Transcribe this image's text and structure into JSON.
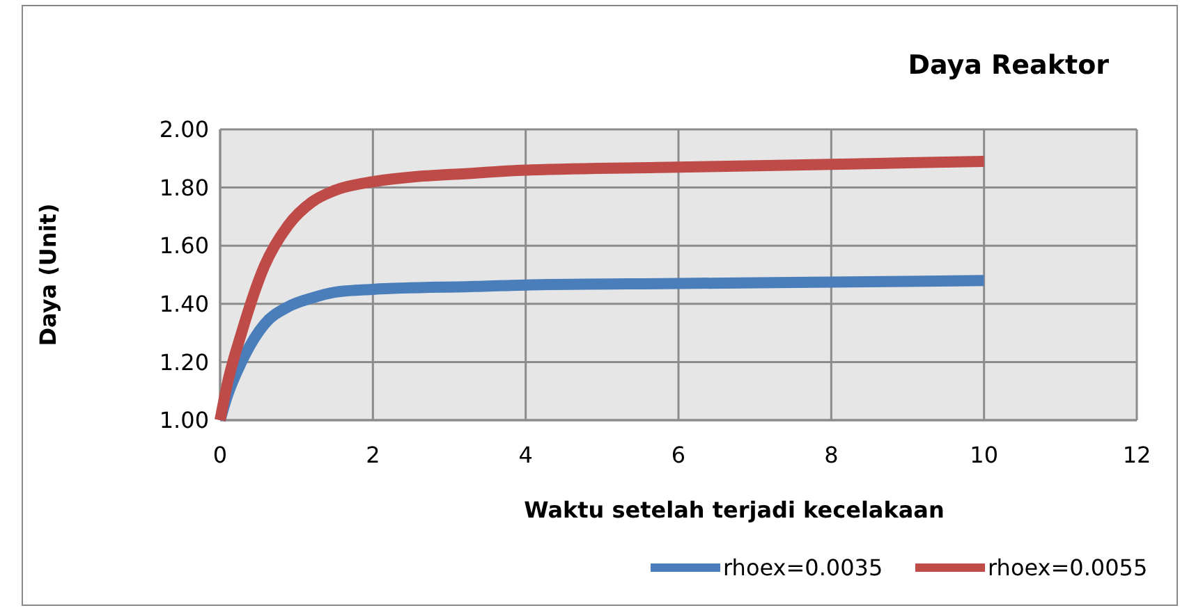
{
  "chart_data": {
    "type": "line",
    "title": "Daya Reaktor",
    "xlabel": "Waktu setelah terjadi kecelakaan",
    "ylabel": "Daya (Unit)",
    "xlim": [
      0,
      12
    ],
    "xticks": [
      0,
      2,
      4,
      6,
      8,
      10,
      12
    ],
    "ylim": [
      1,
      2
    ],
    "yticks": [
      {
        "value": 1,
        "label": "1.00"
      },
      {
        "value": 1.2,
        "label": "1.20"
      },
      {
        "value": 1.4,
        "label": "1.40"
      },
      {
        "value": 1.6,
        "label": "1.60"
      },
      {
        "value": 1.8,
        "label": "1.80"
      },
      {
        "value": 2,
        "label": "2.00"
      }
    ],
    "grid": true,
    "legend": "bottom right",
    "series": [
      {
        "name": "rhoex=0.0035",
        "color": "#4a7ebb",
        "x": [
          0,
          0.09,
          0.28,
          0.58,
          0.89,
          1.2,
          1.5,
          2,
          3.35,
          4,
          6,
          8,
          10
        ],
        "values": [
          1.0,
          1.08,
          1.2,
          1.33,
          1.39,
          1.42,
          1.44,
          1.45,
          1.46,
          1.465,
          1.47,
          1.475,
          1.48
        ]
      },
      {
        "name": "rhoex=0.0055",
        "color": "#be4b48",
        "x": [
          0,
          0.09,
          0.28,
          0.58,
          0.89,
          1.2,
          1.5,
          2,
          3.35,
          4,
          6,
          8,
          10
        ],
        "values": [
          1.0,
          1.12,
          1.3,
          1.53,
          1.67,
          1.75,
          1.79,
          1.82,
          1.85,
          1.86,
          1.87,
          1.88,
          1.89
        ]
      }
    ]
  }
}
